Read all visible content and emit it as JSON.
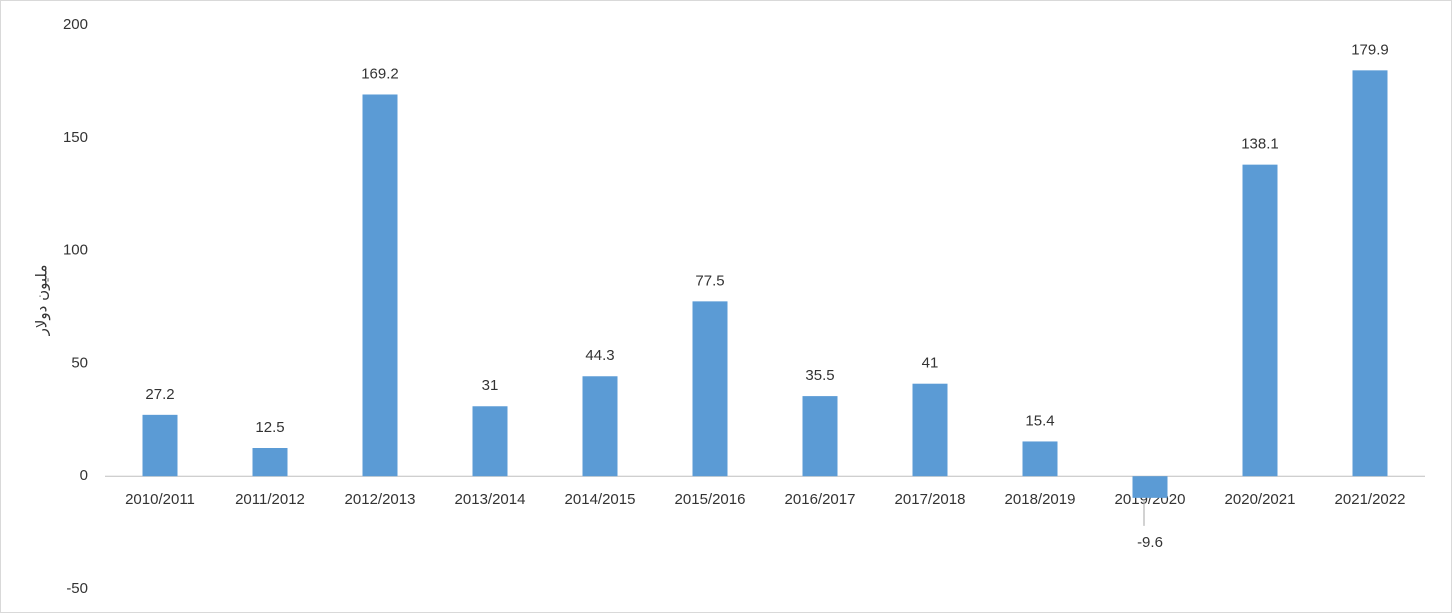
{
  "chart_data": {
    "type": "bar",
    "ylabel": "مليون دولار",
    "categories": [
      "2010/2011",
      "2011/2012",
      "2012/2013",
      "2013/2014",
      "2014/2015",
      "2015/2016",
      "2016/2017",
      "2017/2018",
      "2018/2019",
      "2019/2020",
      "2020/2021",
      "2021/2022"
    ],
    "values": [
      27.2,
      12.5,
      169.2,
      31,
      44.3,
      77.5,
      35.5,
      41,
      15.4,
      -9.6,
      138.1,
      179.9
    ],
    "color": "#5b9bd5",
    "ylim": [
      -50,
      200
    ],
    "yticks": [
      -50,
      0,
      50,
      100,
      150,
      200
    ],
    "grid": false
  }
}
